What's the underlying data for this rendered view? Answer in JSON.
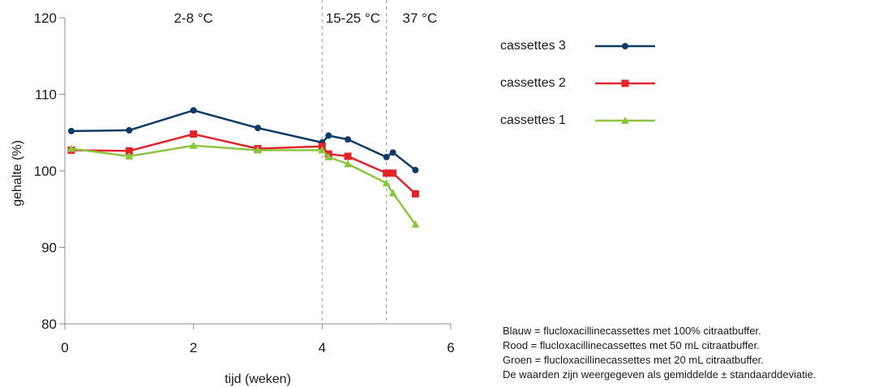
{
  "chart_data": {
    "type": "line",
    "xlabel": "tijd (weken)",
    "ylabel": "gehalte (%)",
    "xlim": [
      0,
      6
    ],
    "ylim": [
      80,
      120
    ],
    "xticks": [
      0,
      2,
      4,
      6
    ],
    "yticks": [
      80,
      90,
      100,
      110,
      120
    ],
    "region_dividers": [
      4,
      5
    ],
    "regions": [
      {
        "label": "2-8 °C",
        "center": 2
      },
      {
        "label": "15-25 °C",
        "center": 4.48
      },
      {
        "label": "37 °C",
        "center": 5.52
      }
    ],
    "series": [
      {
        "name": "cassettes 3",
        "color": "#0d3b66",
        "marker": "circle",
        "x": [
          0.1,
          1.0,
          2.0,
          3.0,
          4.0,
          4.1,
          4.4,
          5.0,
          5.1,
          5.45
        ],
        "y": [
          105.2,
          105.3,
          107.9,
          105.6,
          103.7,
          104.6,
          104.1,
          101.8,
          102.4,
          100.1
        ]
      },
      {
        "name": "cassettes 2",
        "color": "#e3242b",
        "marker": "square",
        "x": [
          0.1,
          1.0,
          2.0,
          3.0,
          4.0,
          4.1,
          4.4,
          5.0,
          5.1,
          5.45
        ],
        "y": [
          102.7,
          102.6,
          104.8,
          102.9,
          103.2,
          102.2,
          101.9,
          99.7,
          99.7,
          97.0
        ]
      },
      {
        "name": "cassettes 1",
        "color": "#8cc63f",
        "marker": "triangle",
        "x": [
          0.1,
          1.0,
          2.0,
          3.0,
          4.0,
          4.1,
          4.4,
          5.0,
          5.1,
          5.45
        ],
        "y": [
          102.9,
          101.9,
          103.3,
          102.7,
          102.7,
          101.8,
          100.9,
          98.4,
          97.1,
          93.0
        ]
      }
    ]
  },
  "footnote": {
    "line1": "Blauw = flucloxacillinecassettes met 100% citraatbuffer.",
    "line2": "Rood = flucloxacillinecassettes met 50 mL citraatbuffer.",
    "line3": "Groen = flucloxacillinecassettes met 20 mL citraatbuffer.",
    "line4": "De waarden zijn weergegeven als gemiddelde ± standaarddeviatie."
  }
}
